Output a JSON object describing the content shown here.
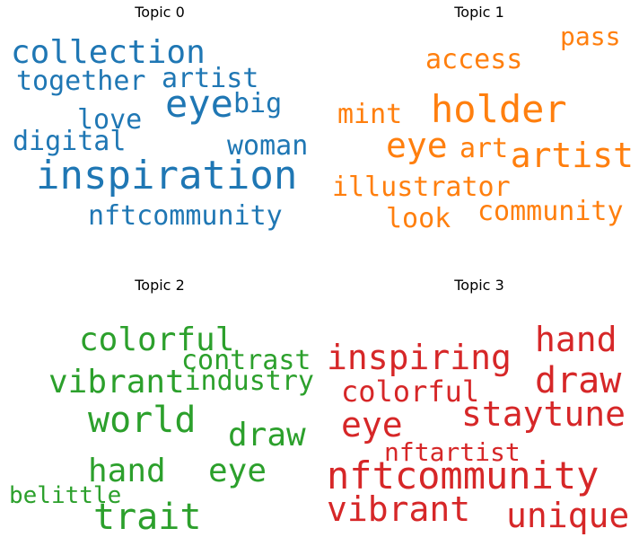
{
  "chart_data": [
    {
      "type": "wordcloud",
      "title": "Topic 0",
      "color": "#1f77b4",
      "words": [
        "collection",
        "together",
        "artist",
        "eye",
        "big",
        "love",
        "digital",
        "woman",
        "inspiration",
        "nftcommunity"
      ]
    },
    {
      "type": "wordcloud",
      "title": "Topic 1",
      "color": "#ff7f0e",
      "words": [
        "pass",
        "access",
        "holder",
        "mint",
        "eye",
        "art",
        "artist",
        "illustrator",
        "community",
        "look"
      ]
    },
    {
      "type": "wordcloud",
      "title": "Topic 2",
      "color": "#2ca02c",
      "words": [
        "colorful",
        "contrast",
        "vibrant",
        "industry",
        "world",
        "draw",
        "hand",
        "eye",
        "belittle",
        "trait"
      ]
    },
    {
      "type": "wordcloud",
      "title": "Topic 3",
      "color": "#d62728",
      "words": [
        "hand",
        "inspiring",
        "draw",
        "colorful",
        "staytune",
        "eye",
        "nftartist",
        "nftcommunity",
        "vibrant",
        "unique"
      ]
    }
  ]
}
